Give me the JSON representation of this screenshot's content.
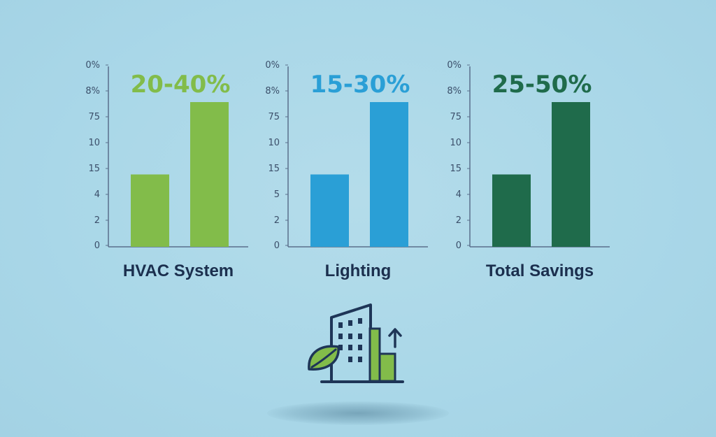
{
  "chart_data": [
    {
      "type": "bar",
      "label": "HVAC System",
      "range_text": "20-40%",
      "color": "#82bc4a",
      "tick_labels": [
        "0%",
        "8%",
        "75",
        "10",
        "15",
        "4",
        "2",
        "0"
      ],
      "values": [
        20,
        40
      ]
    },
    {
      "type": "bar",
      "label": "Lighting",
      "range_text": "15-30%",
      "color": "#2a9fd6",
      "tick_labels": [
        "0%",
        "8%",
        "75",
        "10",
        "15",
        "5",
        "2",
        "0"
      ],
      "values": [
        15,
        30
      ]
    },
    {
      "type": "bar",
      "label": "Total Savings",
      "range_text": "25-50%",
      "color": "#1f6b4b",
      "tick_labels": [
        "0%",
        "8%",
        "75",
        "10",
        "15",
        "4",
        "2",
        "0"
      ],
      "values": [
        25,
        50
      ]
    }
  ],
  "colors": {
    "axis": "#5a6f8c",
    "tick_text": "#3b4f6a",
    "label_text": "#1b2f4e",
    "icon_outline": "#1e3557",
    "icon_green": "#82bc4a"
  },
  "icons": [
    "green-building-icon",
    "leaf-icon",
    "up-arrow-icon"
  ]
}
